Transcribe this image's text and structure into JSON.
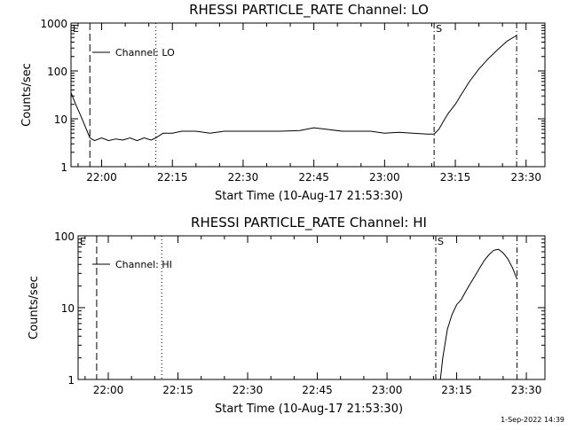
{
  "chart_data": [
    {
      "type": "line",
      "title": "RHESSI PARTICLE_RATE Channel: LO",
      "xlabel": "Start Time (10-Aug-17 21:53:30)",
      "ylabel": "Counts/sec",
      "yscale": "log",
      "ylim": [
        1,
        1000
      ],
      "xlim": [
        "21:53:30",
        "23:34:00"
      ],
      "x_ticks": [
        "22:00",
        "22:15",
        "22:30",
        "22:45",
        "23:00",
        "23:15",
        "23:30"
      ],
      "y_ticks": [
        "1",
        "10",
        "100",
        "1000"
      ],
      "legend": {
        "position": "top-left",
        "entries": [
          "Channel: LO"
        ]
      },
      "flags": [
        {
          "label": "E",
          "time": "21:53:30"
        },
        {
          "label": "S",
          "time": "23:10:30"
        }
      ],
      "vlines": [
        {
          "time": "21:57:30",
          "style": "dashed"
        },
        {
          "time": "22:11:30",
          "style": "dotted"
        },
        {
          "time": "23:10:30",
          "style": "dash-dot"
        },
        {
          "time": "23:28:00",
          "style": "dash-dot"
        }
      ],
      "series": [
        {
          "name": "Channel: LO",
          "points": [
            [
              "21:53:30",
              35
            ],
            [
              "21:54:30",
              20
            ],
            [
              "21:55:30",
              12
            ],
            [
              "21:56:30",
              7
            ],
            [
              "21:57:30",
              4
            ],
            [
              "21:58:30",
              3.5
            ],
            [
              "22:00:00",
              4
            ],
            [
              "22:01:30",
              3.5
            ],
            [
              "22:03:00",
              3.8
            ],
            [
              "22:04:30",
              3.6
            ],
            [
              "22:06:00",
              4
            ],
            [
              "22:07:30",
              3.5
            ],
            [
              "22:09:00",
              4
            ],
            [
              "22:10:30",
              3.6
            ],
            [
              "22:11:30",
              4
            ],
            [
              "22:13:00",
              5
            ],
            [
              "22:15:00",
              5
            ],
            [
              "22:17:00",
              5.5
            ],
            [
              "22:20:00",
              5.5
            ],
            [
              "22:23:00",
              5
            ],
            [
              "22:26:00",
              5.5
            ],
            [
              "22:30:00",
              5.5
            ],
            [
              "22:34:00",
              5.5
            ],
            [
              "22:38:00",
              5.5
            ],
            [
              "22:42:00",
              5.7
            ],
            [
              "22:45:00",
              6.5
            ],
            [
              "22:48:00",
              6
            ],
            [
              "22:51:00",
              5.5
            ],
            [
              "22:54:00",
              5.5
            ],
            [
              "22:57:00",
              5.5
            ],
            [
              "23:00:00",
              5
            ],
            [
              "23:03:00",
              5.2
            ],
            [
              "23:06:00",
              5
            ],
            [
              "23:09:00",
              4.8
            ],
            [
              "23:10:30",
              4.8
            ],
            [
              "23:11:30",
              6
            ],
            [
              "23:12:30",
              9
            ],
            [
              "23:13:30",
              13
            ],
            [
              "23:15:00",
              20
            ],
            [
              "23:16:30",
              35
            ],
            [
              "23:18:00",
              60
            ],
            [
              "23:20:00",
              110
            ],
            [
              "23:22:00",
              180
            ],
            [
              "23:24:00",
              280
            ],
            [
              "23:26:00",
              420
            ],
            [
              "23:28:00",
              550
            ]
          ]
        }
      ]
    },
    {
      "type": "line",
      "title": "RHESSI PARTICLE_RATE Channel: HI",
      "xlabel": "Start Time (10-Aug-17 21:53:30)",
      "ylabel": "Counts/sec",
      "yscale": "log",
      "ylim": [
        1,
        100
      ],
      "xlim": [
        "21:53:30",
        "23:34:00"
      ],
      "x_ticks": [
        "22:00",
        "22:15",
        "22:30",
        "22:45",
        "23:00",
        "23:15",
        "23:30"
      ],
      "y_ticks": [
        "1",
        "10",
        "100"
      ],
      "legend": {
        "position": "top-left",
        "entries": [
          "Channel: HI"
        ]
      },
      "flags": [
        {
          "label": "E",
          "time": "21:53:30"
        },
        {
          "label": "S",
          "time": "23:10:30"
        }
      ],
      "vlines": [
        {
          "time": "21:57:30",
          "style": "dashed"
        },
        {
          "time": "22:11:30",
          "style": "dotted"
        },
        {
          "time": "23:10:30",
          "style": "dash-dot"
        },
        {
          "time": "23:28:00",
          "style": "dash-dot"
        }
      ],
      "series": [
        {
          "name": "Channel: HI",
          "points": [
            [
              "23:11:30",
              1
            ],
            [
              "23:12:00",
              2
            ],
            [
              "23:13:00",
              5
            ],
            [
              "23:14:00",
              8
            ],
            [
              "23:15:00",
              11
            ],
            [
              "23:16:00",
              13
            ],
            [
              "23:17:00",
              17
            ],
            [
              "23:18:00",
              22
            ],
            [
              "23:19:00",
              28
            ],
            [
              "23:20:00",
              36
            ],
            [
              "23:21:00",
              46
            ],
            [
              "23:22:00",
              55
            ],
            [
              "23:23:00",
              63
            ],
            [
              "23:24:00",
              65
            ],
            [
              "23:25:00",
              58
            ],
            [
              "23:26:00",
              48
            ],
            [
              "23:27:00",
              36
            ],
            [
              "23:28:00",
              25
            ]
          ]
        }
      ]
    }
  ],
  "timestamp": "1-Sep-2022 14:39"
}
